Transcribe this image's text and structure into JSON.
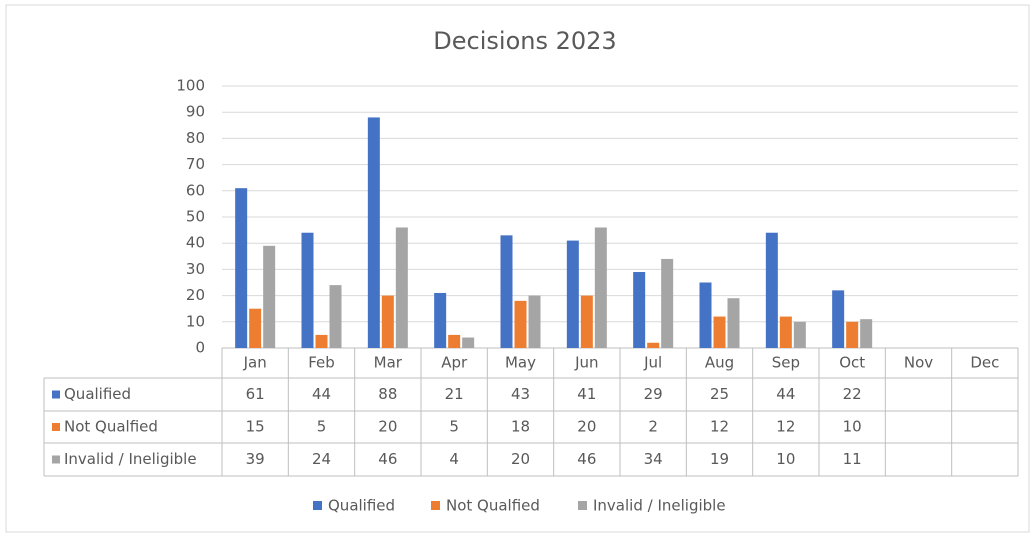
{
  "chart_data": {
    "type": "bar",
    "title": "Decisions 2023",
    "categories": [
      "Jan",
      "Feb",
      "Mar",
      "Apr",
      "May",
      "Jun",
      "Jul",
      "Aug",
      "Sep",
      "Oct",
      "Nov",
      "Dec"
    ],
    "series": [
      {
        "name": "Qualified",
        "color": "#4472c4",
        "values": [
          61,
          44,
          88,
          21,
          43,
          41,
          29,
          25,
          44,
          22,
          null,
          null
        ]
      },
      {
        "name": "Not Qualfied",
        "color": "#ed7d31",
        "values": [
          15,
          5,
          20,
          5,
          18,
          20,
          2,
          12,
          12,
          10,
          null,
          null
        ]
      },
      {
        "name": "Invalid / Ineligible",
        "color": "#a5a5a5",
        "values": [
          39,
          24,
          46,
          4,
          20,
          46,
          34,
          19,
          10,
          11,
          null,
          null
        ]
      }
    ],
    "ylim": [
      0,
      100
    ],
    "yticks": [
      0,
      10,
      20,
      30,
      40,
      50,
      60,
      70,
      80,
      90,
      100
    ],
    "grid": true,
    "legend": "bottom",
    "data_table": true
  }
}
